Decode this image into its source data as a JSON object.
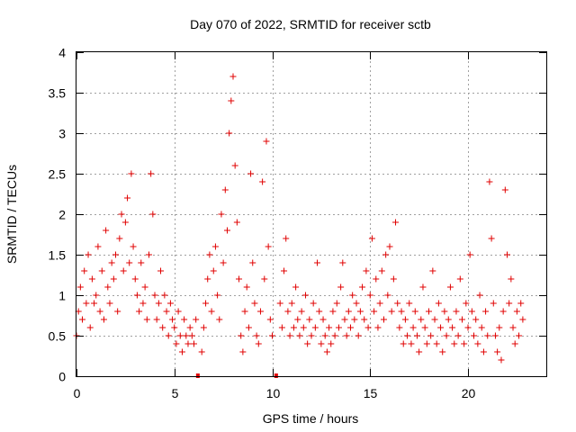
{
  "chart_data": {
    "type": "scatter",
    "title": "Day 070 of 2022, SRMTID for receiver sctb",
    "xlabel": "GPS time / hours",
    "ylabel": "SRMTID / TECUs",
    "xlim": [
      0,
      24
    ],
    "ylim": [
      0,
      4
    ],
    "xticks": [
      0,
      5,
      10,
      15,
      20
    ],
    "xtick_labels": [
      "0",
      "5",
      "10",
      "15",
      "20"
    ],
    "yticks": [
      0,
      0.5,
      1,
      1.5,
      2,
      2.5,
      3,
      3.5,
      4
    ],
    "ytick_labels": [
      "0",
      "0.5",
      "1",
      "1.5",
      "2",
      "2.5",
      "3",
      "3.5",
      "4"
    ],
    "grid": true,
    "marker": "+",
    "color": "#e00000",
    "data_gaps_at_hours": [
      6.2,
      10.2
    ],
    "series": [
      {
        "name": "SRMTID",
        "points": [
          [
            0.0,
            0.5
          ],
          [
            0.1,
            0.8
          ],
          [
            0.2,
            1.1
          ],
          [
            0.3,
            0.7
          ],
          [
            0.4,
            1.3
          ],
          [
            0.5,
            0.9
          ],
          [
            0.6,
            1.5
          ],
          [
            0.7,
            0.6
          ],
          [
            0.8,
            1.2
          ],
          [
            0.9,
            0.9
          ],
          [
            1.0,
            1.0
          ],
          [
            1.1,
            1.6
          ],
          [
            1.2,
            0.8
          ],
          [
            1.3,
            1.3
          ],
          [
            1.4,
            0.7
          ],
          [
            1.5,
            1.8
          ],
          [
            1.6,
            1.1
          ],
          [
            1.7,
            0.9
          ],
          [
            1.8,
            1.4
          ],
          [
            1.9,
            1.2
          ],
          [
            2.0,
            1.5
          ],
          [
            2.1,
            0.8
          ],
          [
            2.2,
            1.7
          ],
          [
            2.3,
            2.0
          ],
          [
            2.4,
            1.3
          ],
          [
            2.5,
            1.9
          ],
          [
            2.6,
            2.2
          ],
          [
            2.7,
            1.4
          ],
          [
            2.8,
            2.5
          ],
          [
            2.9,
            1.6
          ],
          [
            3.0,
            1.2
          ],
          [
            3.1,
            1.0
          ],
          [
            3.2,
            0.8
          ],
          [
            3.3,
            1.4
          ],
          [
            3.4,
            0.9
          ],
          [
            3.5,
            1.1
          ],
          [
            3.6,
            0.7
          ],
          [
            3.7,
            1.5
          ],
          [
            3.8,
            2.5
          ],
          [
            3.9,
            2.0
          ],
          [
            4.0,
            1.0
          ],
          [
            4.1,
            0.7
          ],
          [
            4.2,
            0.9
          ],
          [
            4.3,
            1.3
          ],
          [
            4.4,
            0.6
          ],
          [
            4.5,
            1.0
          ],
          [
            4.6,
            0.8
          ],
          [
            4.7,
            0.5
          ],
          [
            4.8,
            0.9
          ],
          [
            4.9,
            0.7
          ],
          [
            5.0,
            0.6
          ],
          [
            5.1,
            0.4
          ],
          [
            5.2,
            0.8
          ],
          [
            5.3,
            0.5
          ],
          [
            5.4,
            0.3
          ],
          [
            5.5,
            0.7
          ],
          [
            5.6,
            0.5
          ],
          [
            5.7,
            0.4
          ],
          [
            5.8,
            0.6
          ],
          [
            5.9,
            0.5
          ],
          [
            6.0,
            0.4
          ],
          [
            6.1,
            0.7
          ],
          [
            6.4,
            0.3
          ],
          [
            6.5,
            0.6
          ],
          [
            6.6,
            0.9
          ],
          [
            6.7,
            1.2
          ],
          [
            6.8,
            1.5
          ],
          [
            6.9,
            0.8
          ],
          [
            7.0,
            1.3
          ],
          [
            7.1,
            1.6
          ],
          [
            7.2,
            1.0
          ],
          [
            7.3,
            0.7
          ],
          [
            7.4,
            2.0
          ],
          [
            7.5,
            1.4
          ],
          [
            7.6,
            2.3
          ],
          [
            7.7,
            1.8
          ],
          [
            7.8,
            3.0
          ],
          [
            7.9,
            3.4
          ],
          [
            8.0,
            3.7
          ],
          [
            8.1,
            2.6
          ],
          [
            8.2,
            1.9
          ],
          [
            8.3,
            1.2
          ],
          [
            8.4,
            0.5
          ],
          [
            8.5,
            0.3
          ],
          [
            8.6,
            0.8
          ],
          [
            8.7,
            1.1
          ],
          [
            8.8,
            0.6
          ],
          [
            8.9,
            2.5
          ],
          [
            9.0,
            1.4
          ],
          [
            9.1,
            0.9
          ],
          [
            9.2,
            0.5
          ],
          [
            9.3,
            0.4
          ],
          [
            9.4,
            0.8
          ],
          [
            9.5,
            2.4
          ],
          [
            9.6,
            1.2
          ],
          [
            9.7,
            2.9
          ],
          [
            9.8,
            1.6
          ],
          [
            9.9,
            0.7
          ],
          [
            10.0,
            0.5
          ],
          [
            10.4,
            0.9
          ],
          [
            10.5,
            0.6
          ],
          [
            10.6,
            1.3
          ],
          [
            10.7,
            1.7
          ],
          [
            10.8,
            0.8
          ],
          [
            10.9,
            0.5
          ],
          [
            11.0,
            0.9
          ],
          [
            11.1,
            0.6
          ],
          [
            11.2,
            1.1
          ],
          [
            11.3,
            0.7
          ],
          [
            11.4,
            0.5
          ],
          [
            11.5,
            0.8
          ],
          [
            11.6,
            0.6
          ],
          [
            11.7,
            1.0
          ],
          [
            11.8,
            0.4
          ],
          [
            11.9,
            0.7
          ],
          [
            12.0,
            0.5
          ],
          [
            12.1,
            0.9
          ],
          [
            12.2,
            0.6
          ],
          [
            12.3,
            1.4
          ],
          [
            12.4,
            0.8
          ],
          [
            12.5,
            0.4
          ],
          [
            12.6,
            0.7
          ],
          [
            12.7,
            0.5
          ],
          [
            12.8,
            0.3
          ],
          [
            12.9,
            0.6
          ],
          [
            13.0,
            0.4
          ],
          [
            13.1,
            0.8
          ],
          [
            13.2,
            0.5
          ],
          [
            13.3,
            0.9
          ],
          [
            13.4,
            0.6
          ],
          [
            13.5,
            1.1
          ],
          [
            13.6,
            1.4
          ],
          [
            13.7,
            0.7
          ],
          [
            13.8,
            0.5
          ],
          [
            13.9,
            0.8
          ],
          [
            14.0,
            0.6
          ],
          [
            14.1,
            1.0
          ],
          [
            14.2,
            0.7
          ],
          [
            14.3,
            0.9
          ],
          [
            14.4,
            0.5
          ],
          [
            14.5,
            0.8
          ],
          [
            14.6,
            1.1
          ],
          [
            14.7,
            0.7
          ],
          [
            14.8,
            1.3
          ],
          [
            14.9,
            0.6
          ],
          [
            15.0,
            1.0
          ],
          [
            15.1,
            1.7
          ],
          [
            15.2,
            0.8
          ],
          [
            15.3,
            1.2
          ],
          [
            15.4,
            0.6
          ],
          [
            15.5,
            0.9
          ],
          [
            15.6,
            1.3
          ],
          [
            15.7,
            0.7
          ],
          [
            15.8,
            1.5
          ],
          [
            15.9,
            1.0
          ],
          [
            16.0,
            1.6
          ],
          [
            16.1,
            0.8
          ],
          [
            16.2,
            1.2
          ],
          [
            16.3,
            1.9
          ],
          [
            16.4,
            0.9
          ],
          [
            16.5,
            0.6
          ],
          [
            16.6,
            0.8
          ],
          [
            16.7,
            0.4
          ],
          [
            16.8,
            0.7
          ],
          [
            16.9,
            0.5
          ],
          [
            17.0,
            0.9
          ],
          [
            17.1,
            0.4
          ],
          [
            17.2,
            0.6
          ],
          [
            17.3,
            0.8
          ],
          [
            17.4,
            0.5
          ],
          [
            17.5,
            0.3
          ],
          [
            17.6,
            0.7
          ],
          [
            17.7,
            1.1
          ],
          [
            17.8,
            0.6
          ],
          [
            17.9,
            0.4
          ],
          [
            18.0,
            0.8
          ],
          [
            18.1,
            0.5
          ],
          [
            18.2,
            1.3
          ],
          [
            18.3,
            0.7
          ],
          [
            18.4,
            0.4
          ],
          [
            18.5,
            0.9
          ],
          [
            18.6,
            0.6
          ],
          [
            18.7,
            0.3
          ],
          [
            18.8,
            0.8
          ],
          [
            18.9,
            0.5
          ],
          [
            19.0,
            0.7
          ],
          [
            19.1,
            1.1
          ],
          [
            19.2,
            0.6
          ],
          [
            19.3,
            0.4
          ],
          [
            19.4,
            0.8
          ],
          [
            19.5,
            0.5
          ],
          [
            19.6,
            1.2
          ],
          [
            19.7,
            0.7
          ],
          [
            19.8,
            0.4
          ],
          [
            19.9,
            0.9
          ],
          [
            20.0,
            0.6
          ],
          [
            20.1,
            1.5
          ],
          [
            20.2,
            0.8
          ],
          [
            20.3,
            0.5
          ],
          [
            20.4,
            0.7
          ],
          [
            20.5,
            0.4
          ],
          [
            20.6,
            1.0
          ],
          [
            20.7,
            0.6
          ],
          [
            20.8,
            0.3
          ],
          [
            20.9,
            0.8
          ],
          [
            21.0,
            0.5
          ],
          [
            21.1,
            2.4
          ],
          [
            21.2,
            1.7
          ],
          [
            21.3,
            0.9
          ],
          [
            21.4,
            0.5
          ],
          [
            21.5,
            0.3
          ],
          [
            21.6,
            0.6
          ],
          [
            21.7,
            0.2
          ],
          [
            21.8,
            0.8
          ],
          [
            21.9,
            2.3
          ],
          [
            22.0,
            1.5
          ],
          [
            22.1,
            0.9
          ],
          [
            22.2,
            1.2
          ],
          [
            22.3,
            0.6
          ],
          [
            22.4,
            0.4
          ],
          [
            22.5,
            0.8
          ],
          [
            22.6,
            0.5
          ],
          [
            22.7,
            0.9
          ],
          [
            22.8,
            0.7
          ]
        ]
      }
    ]
  }
}
